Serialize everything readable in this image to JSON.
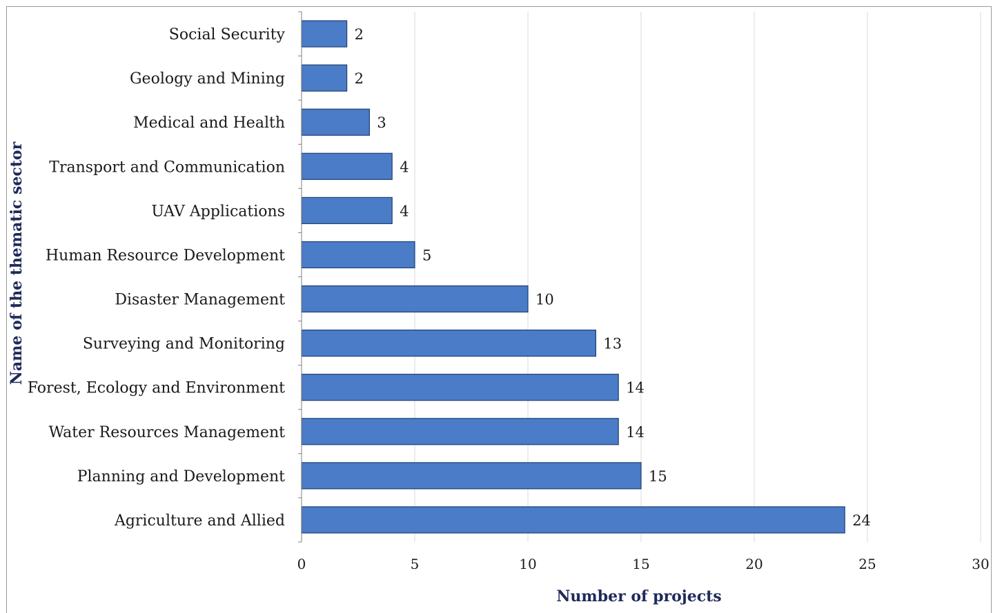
{
  "chart_data": {
    "type": "bar",
    "orientation": "horizontal",
    "categories": [
      "Social Security",
      "Geology and Mining",
      "Medical and Health",
      "Transport and Communication",
      "UAV Applications",
      "Human Resource Development",
      "Disaster Management",
      "Surveying and Monitoring",
      "Forest, Ecology and Environment",
      "Water Resources Management",
      "Planning and Development",
      "Agriculture and Allied"
    ],
    "values": [
      2,
      2,
      3,
      4,
      4,
      5,
      10,
      13,
      14,
      14,
      15,
      24
    ],
    "title": "",
    "xlabel": "Number of projects",
    "ylabel": "Name of the thematic sector",
    "xlim": [
      0,
      30
    ],
    "xticks": [
      0,
      5,
      10,
      15,
      20,
      25,
      30
    ],
    "grid": "vertical",
    "legend": "none",
    "colors": {
      "bar": "#4a7cc7",
      "bar_edge": "#1f3f73",
      "grid": "#d9d9d9",
      "axis_title": "#1f2a5a"
    }
  }
}
